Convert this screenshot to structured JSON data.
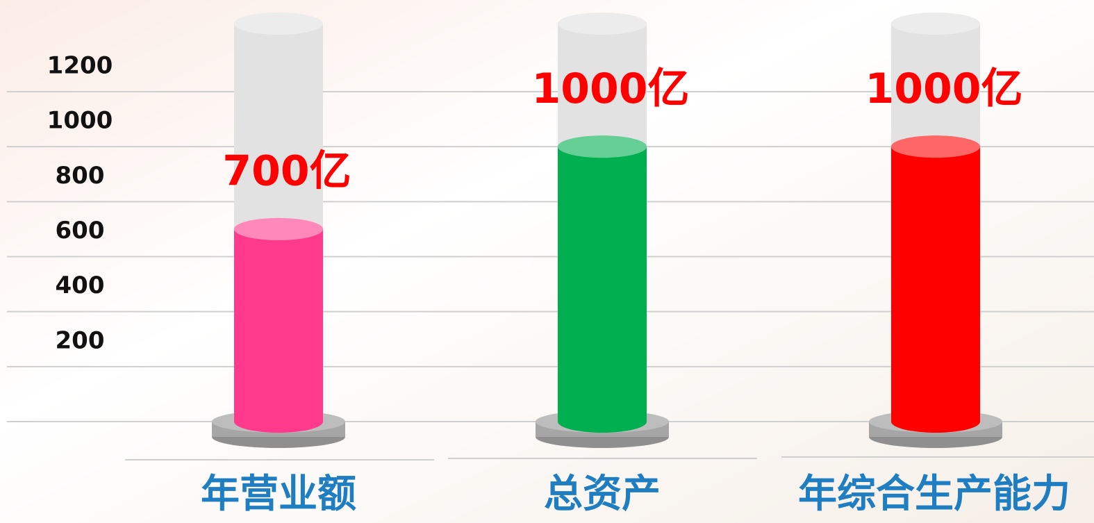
{
  "chart_data": {
    "type": "bar",
    "categories": [
      "年营业额",
      "总资产",
      "年综合生产能力"
    ],
    "values": [
      700,
      1000,
      1000
    ],
    "value_labels": [
      "700亿",
      "1000亿",
      "1000亿"
    ],
    "colors": [
      "#ff3a8c",
      "#00b050",
      "#ff0000"
    ],
    "ylim": [
      0,
      1200
    ],
    "yticks": [
      200,
      400,
      600,
      800,
      1000,
      1200
    ],
    "grid": true
  }
}
